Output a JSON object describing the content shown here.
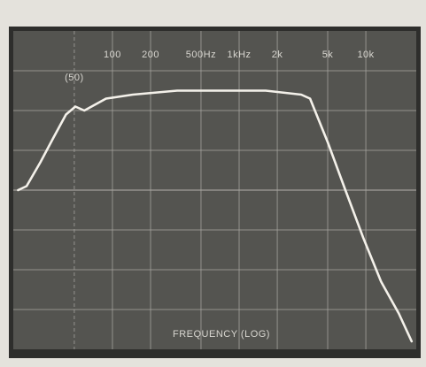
{
  "chart_data": {
    "type": "line",
    "x_label": "FREQUENCY (LOG)",
    "x_scale": "log",
    "x": [
      18,
      21,
      27,
      34,
      43,
      51,
      60,
      89,
      145,
      324,
      1620,
      3090,
      3630,
      5010,
      6900,
      9550,
      13200,
      18200,
      23000
    ],
    "values": [
      4.0,
      4.1,
      4.7,
      5.3,
      5.9,
      6.1,
      6.0,
      6.3,
      6.4,
      6.5,
      6.5,
      6.4,
      6.3,
      5.2,
      4.0,
      2.8,
      1.7,
      0.9,
      0.2
    ],
    "color": "#f4f1ea",
    "xlim": [
      16.5,
      25000
    ],
    "ylim": [
      0,
      8
    ],
    "xticks": [
      {
        "value": 50,
        "label": "(50)"
      },
      100,
      200,
      {
        "value": 500,
        "label": "500Hz"
      },
      {
        "value": 1000,
        "label": "1kHz"
      },
      {
        "value": 2000,
        "label": "2k"
      },
      {
        "value": 5000,
        "label": "5k"
      },
      {
        "value": 10000,
        "label": "10k"
      }
    ]
  }
}
